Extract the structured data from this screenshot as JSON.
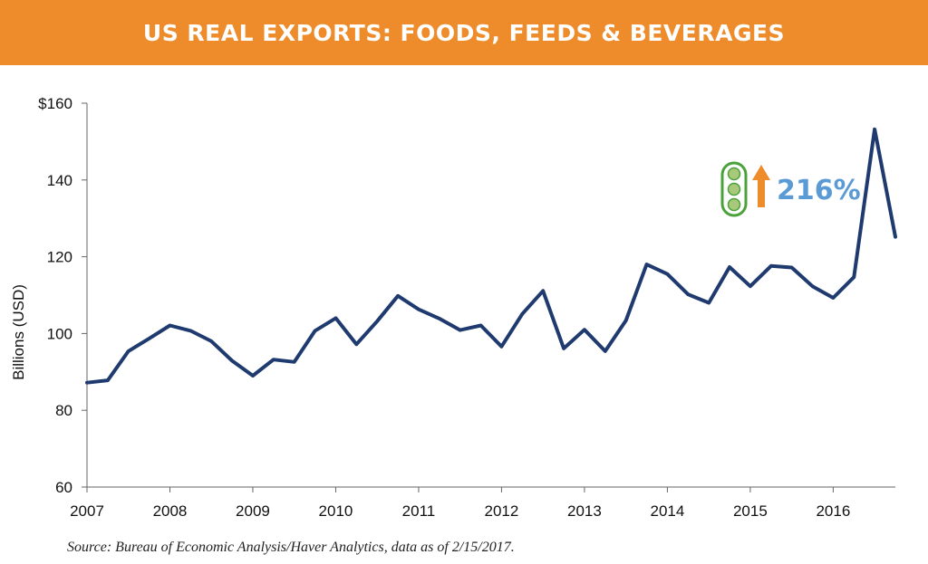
{
  "header": {
    "title": "US REAL EXPORTS: FOODS, FEEDS & BEVERAGES"
  },
  "colors": {
    "banner": "#EE8B2A",
    "line": "#1F3A6E",
    "annotation_text": "#5B9BD5",
    "arrow": "#EE8B2A",
    "pea_pod": "#4CA23A"
  },
  "chart_data": {
    "type": "line",
    "title": "US REAL EXPORTS: FOODS, FEEDS & BEVERAGES",
    "xlabel": "",
    "ylabel": "Billions (USD)",
    "x_tick_labels": [
      "2007",
      "2008",
      "2009",
      "2010",
      "2011",
      "2012",
      "2013",
      "2014",
      "2015",
      "2016"
    ],
    "y_tick_labels": [
      "$160",
      "140",
      "120",
      "100",
      "80",
      "60"
    ],
    "ylim": [
      60,
      160
    ],
    "xlim": [
      2007.0,
      2016.75
    ],
    "grid": false,
    "x": [
      2007.0,
      2007.25,
      2007.5,
      2007.75,
      2008.0,
      2008.25,
      2008.5,
      2008.75,
      2009.0,
      2009.25,
      2009.5,
      2009.75,
      2010.0,
      2010.25,
      2010.5,
      2010.75,
      2011.0,
      2011.25,
      2011.5,
      2011.75,
      2012.0,
      2012.25,
      2012.5,
      2012.75,
      2013.0,
      2013.25,
      2013.5,
      2013.75,
      2014.0,
      2014.25,
      2014.5,
      2014.75,
      2015.0,
      2015.25,
      2015.5,
      2015.75,
      2016.0,
      2016.25,
      2016.5,
      2016.75
    ],
    "series": [
      {
        "values": [
          87.2,
          87.8,
          95.4,
          98.7,
          102.1,
          100.7,
          98.0,
          92.9,
          89.0,
          93.2,
          92.6,
          100.7,
          104.0,
          97.2,
          103.2,
          109.8,
          106.3,
          103.9,
          100.9,
          102.1,
          96.6,
          105.1,
          111.1,
          96.1,
          101.0,
          95.4,
          103.4,
          118.0,
          115.5,
          110.2,
          108.0,
          117.3,
          112.3,
          117.6,
          117.2,
          112.3,
          109.3,
          114.7,
          153.2,
          125.2
        ]
      }
    ],
    "annotation": {
      "text": "216%",
      "icons": [
        "pea-pod",
        "up-arrow"
      ]
    }
  },
  "source": "Source: Bureau of Economic Analysis/Haver Analytics, data as of 2/15/2017."
}
